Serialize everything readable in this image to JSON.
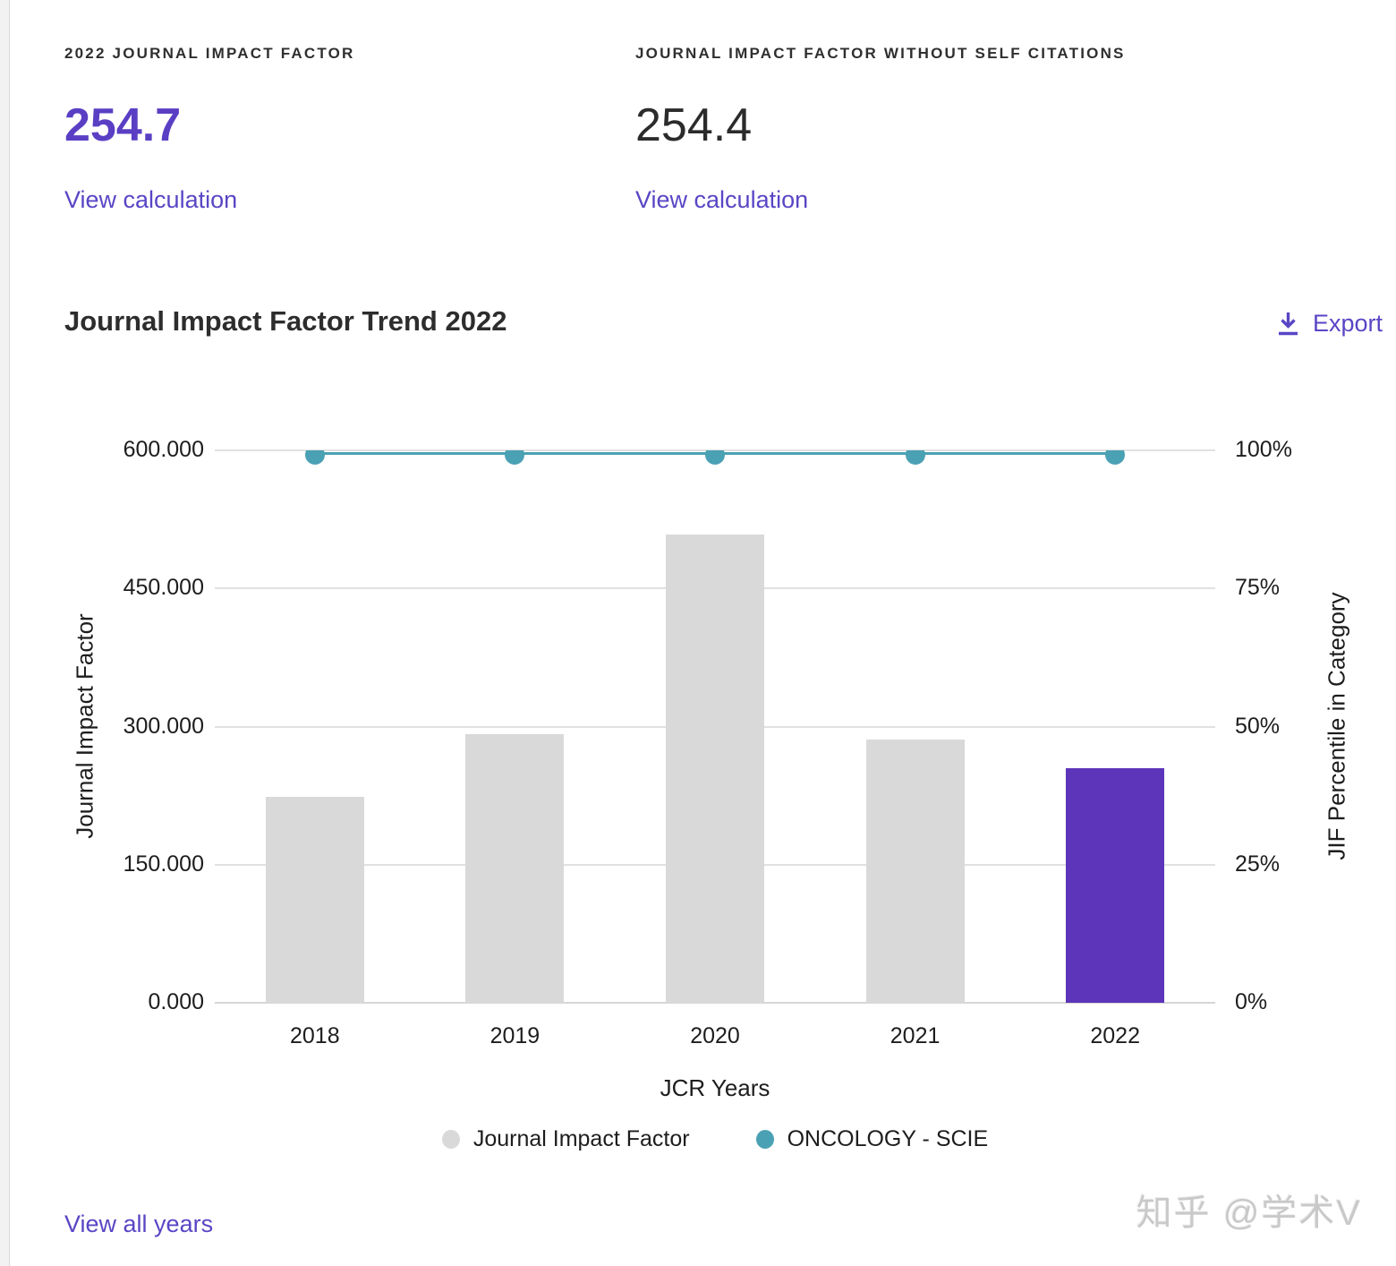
{
  "stats": [
    {
      "label": "2022 JOURNAL IMPACT FACTOR",
      "value": "254.7",
      "link_label": "View calculation"
    },
    {
      "label": "JOURNAL IMPACT FACTOR WITHOUT SELF CITATIONS",
      "value": "254.4",
      "link_label": "View calculation"
    }
  ],
  "trend_section": {
    "title": "Journal Impact Factor Trend 2022",
    "export_label": "Export"
  },
  "chart_data": {
    "type": "bar",
    "title": "Journal Impact Factor Trend 2022",
    "categories": [
      "2018",
      "2019",
      "2020",
      "2021",
      "2022"
    ],
    "series": [
      {
        "name": "Journal Impact Factor",
        "type": "bar",
        "axis": "left",
        "values": [
          224,
          292,
          509,
          286,
          254.7
        ],
        "highlight_index": 4
      },
      {
        "name": "ONCOLOGY - SCIE",
        "type": "line",
        "axis": "right",
        "values": [
          99.9,
          99.9,
          99.9,
          99.9,
          99.9
        ]
      }
    ],
    "xlabel": "JCR Years",
    "ylabel_left": "Journal Impact Factor",
    "ylabel_right": "JIF Percentile in Category",
    "yticks_left": [
      "600.000",
      "450.000",
      "300.000",
      "150.000",
      "0.000"
    ],
    "yticks_right": [
      "100%",
      "75%",
      "50%",
      "25%",
      "0%"
    ],
    "ylim_left": [
      0,
      600
    ],
    "ylim_right": [
      0,
      100
    ],
    "grid": true,
    "legend_position": "bottom",
    "legend": [
      {
        "label": "Journal Impact Factor",
        "color": "#d9d9d9"
      },
      {
        "label": "ONCOLOGY - SCIE",
        "color": "#4ba1b4"
      }
    ]
  },
  "footer": {
    "view_all_label": "View all years",
    "watermark": "知乎 @学术V"
  },
  "colors": {
    "accent_purple": "#5846c5",
    "value_purple": "#5a3fc4",
    "bar_gray": "#d9d9d9",
    "bar_highlight_purple": "#5c35ba",
    "line_teal": "#4ba1b4",
    "gridline": "#e1e1e1",
    "watermark_gray": "#c9c9c9"
  }
}
